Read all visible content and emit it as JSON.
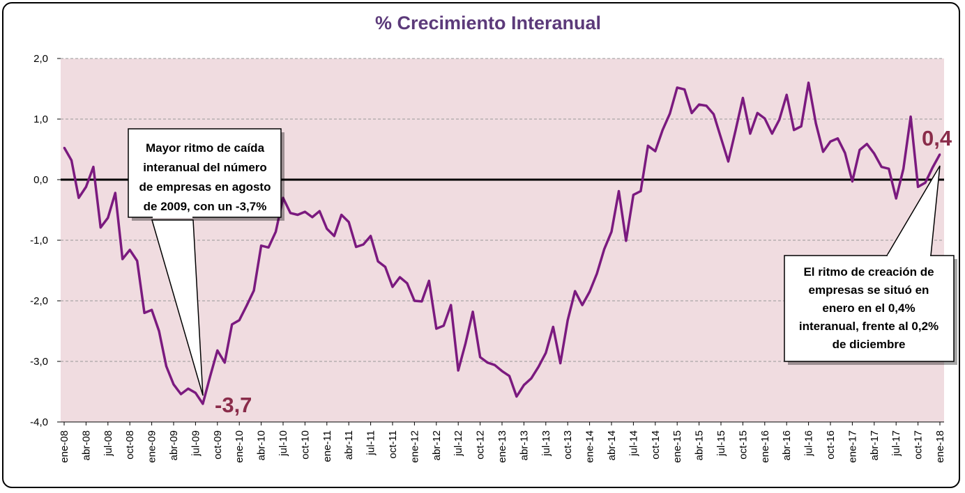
{
  "chart_data": {
    "type": "line",
    "title": "% Crecimiento Interanual",
    "ylim": [
      -4.0,
      2.0
    ],
    "yticks": [
      "2,0",
      "1,0",
      "0,0",
      "-1,0",
      "-2,0",
      "-3,0",
      "-4,0"
    ],
    "ytick_values": [
      2,
      1,
      0,
      -1,
      -2,
      -3,
      -4
    ],
    "xtick_labels": [
      "ene-08",
      "abr-08",
      "jul-08",
      "oct-08",
      "ene-09",
      "abr-09",
      "jul-09",
      "oct-09",
      "ene-10",
      "abr-10",
      "jul-10",
      "oct-10",
      "ene-11",
      "abr-11",
      "jul-11",
      "oct-11",
      "ene-12",
      "abr-12",
      "jul-12",
      "oct-12",
      "ene-13",
      "abr-13",
      "jul-13",
      "oct-13",
      "ene-14",
      "abr-14",
      "jul-14",
      "oct-14",
      "ene-15",
      "abr-15",
      "jul-15",
      "oct-15",
      "ene-16",
      "abr-16",
      "jul-16",
      "oct-16",
      "ene-17",
      "abr-17",
      "jul-17",
      "oct-17",
      "ene-18"
    ],
    "grid": true,
    "plot_background": "#f0dce0",
    "line_color": "#7b1a7f",
    "zero_line_color": "#000000",
    "values": [
      0.53,
      0.32,
      -0.3,
      -0.12,
      0.21,
      -0.79,
      -0.63,
      -0.22,
      -1.31,
      -1.16,
      -1.34,
      -2.2,
      -2.15,
      -2.5,
      -3.08,
      -3.38,
      -3.54,
      -3.45,
      -3.52,
      -3.7,
      -3.25,
      -2.82,
      -3.02,
      -2.39,
      -2.32,
      -2.08,
      -1.83,
      -1.09,
      -1.12,
      -0.86,
      -0.3,
      -0.55,
      -0.58,
      -0.53,
      -0.62,
      -0.52,
      -0.81,
      -0.93,
      -0.58,
      -0.7,
      -1.11,
      -1.07,
      -0.93,
      -1.35,
      -1.44,
      -1.77,
      -1.61,
      -1.71,
      -2.0,
      -2.01,
      -1.67,
      -2.46,
      -2.41,
      -2.07,
      -3.15,
      -2.7,
      -2.18,
      -2.93,
      -3.02,
      -3.06,
      -3.16,
      -3.24,
      -3.58,
      -3.39,
      -3.28,
      -3.09,
      -2.86,
      -2.43,
      -3.03,
      -2.32,
      -1.84,
      -2.07,
      -1.85,
      -1.55,
      -1.15,
      -0.86,
      -0.19,
      -1.01,
      -0.25,
      -0.19,
      0.56,
      0.47,
      0.82,
      1.09,
      1.52,
      1.49,
      1.1,
      1.24,
      1.22,
      1.08,
      0.69,
      0.3,
      0.81,
      1.35,
      0.76,
      1.1,
      1.01,
      0.76,
      0.99,
      1.4,
      0.82,
      0.88,
      1.6,
      0.93,
      0.46,
      0.63,
      0.68,
      0.44,
      -0.03,
      0.49,
      0.59,
      0.43,
      0.21,
      0.18,
      -0.31,
      0.18,
      1.04,
      -0.12,
      -0.05,
      0.2,
      0.42
    ],
    "annotations": {
      "min_label": "-3,7",
      "last_label": "0,4",
      "callout_left": [
        "Mayor ritmo de caída",
        "interanual del número",
        "de empresas en agosto",
        "de 2009,  con un -3,7%"
      ],
      "callout_right": [
        "El ritmo de creación de",
        "empresas se situó en",
        "enero en el 0,4%",
        "interanual, frente al 0,2%",
        "de diciembre"
      ]
    }
  }
}
